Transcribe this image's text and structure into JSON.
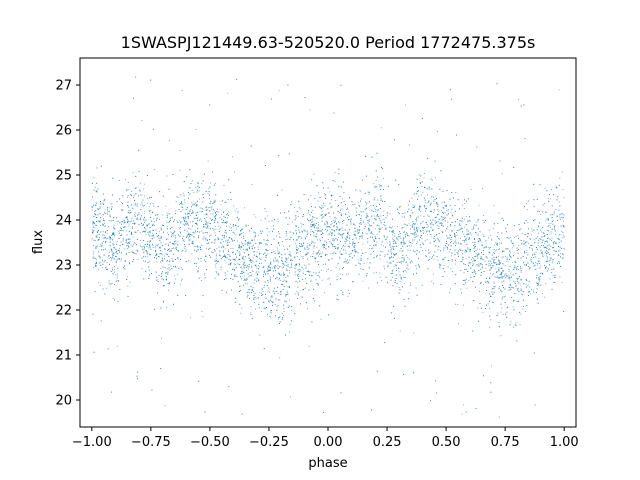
{
  "chart_data": {
    "type": "scatter",
    "title": "1SWASPJ121449.63-520520.0 Period 1772475.375s",
    "xlabel": "phase",
    "ylabel": "flux",
    "xlim": [
      -1.05,
      1.05
    ],
    "ylim": [
      19.4,
      27.6
    ],
    "x_ticks": [
      -1.0,
      -0.75,
      -0.5,
      -0.25,
      0.0,
      0.25,
      0.5,
      0.75,
      1.0
    ],
    "x_tick_labels": [
      "−1.00",
      "−0.75",
      "−0.50",
      "−0.25",
      "0.00",
      "0.25",
      "0.50",
      "0.75",
      "1.00"
    ],
    "y_ticks": [
      20,
      21,
      22,
      23,
      24,
      25,
      26,
      27
    ],
    "y_tick_labels": [
      "20",
      "21",
      "22",
      "23",
      "24",
      "25",
      "26",
      "27"
    ],
    "grid": false,
    "legend": "none",
    "point_color": "#1f77b4",
    "series": [
      {
        "x_range": [
          -1.0,
          1.0
        ],
        "trend": {
          "phase": [
            -1.0,
            -0.9,
            -0.8,
            -0.7,
            -0.6,
            -0.5,
            -0.4,
            -0.3,
            -0.2,
            -0.1,
            0.0,
            0.1,
            0.2,
            0.3,
            0.4,
            0.5,
            0.6,
            0.7,
            0.8,
            0.9,
            1.0
          ],
          "flux": [
            23.9,
            23.4,
            24.0,
            23.2,
            24.0,
            23.8,
            23.3,
            22.9,
            22.8,
            23.3,
            23.8,
            23.4,
            24.0,
            23.2,
            24.0,
            23.8,
            23.3,
            22.9,
            22.8,
            23.3,
            23.8
          ]
        },
        "scatter_sd": 0.55,
        "y_range": [
          19.6,
          27.2
        ]
      }
    ]
  }
}
